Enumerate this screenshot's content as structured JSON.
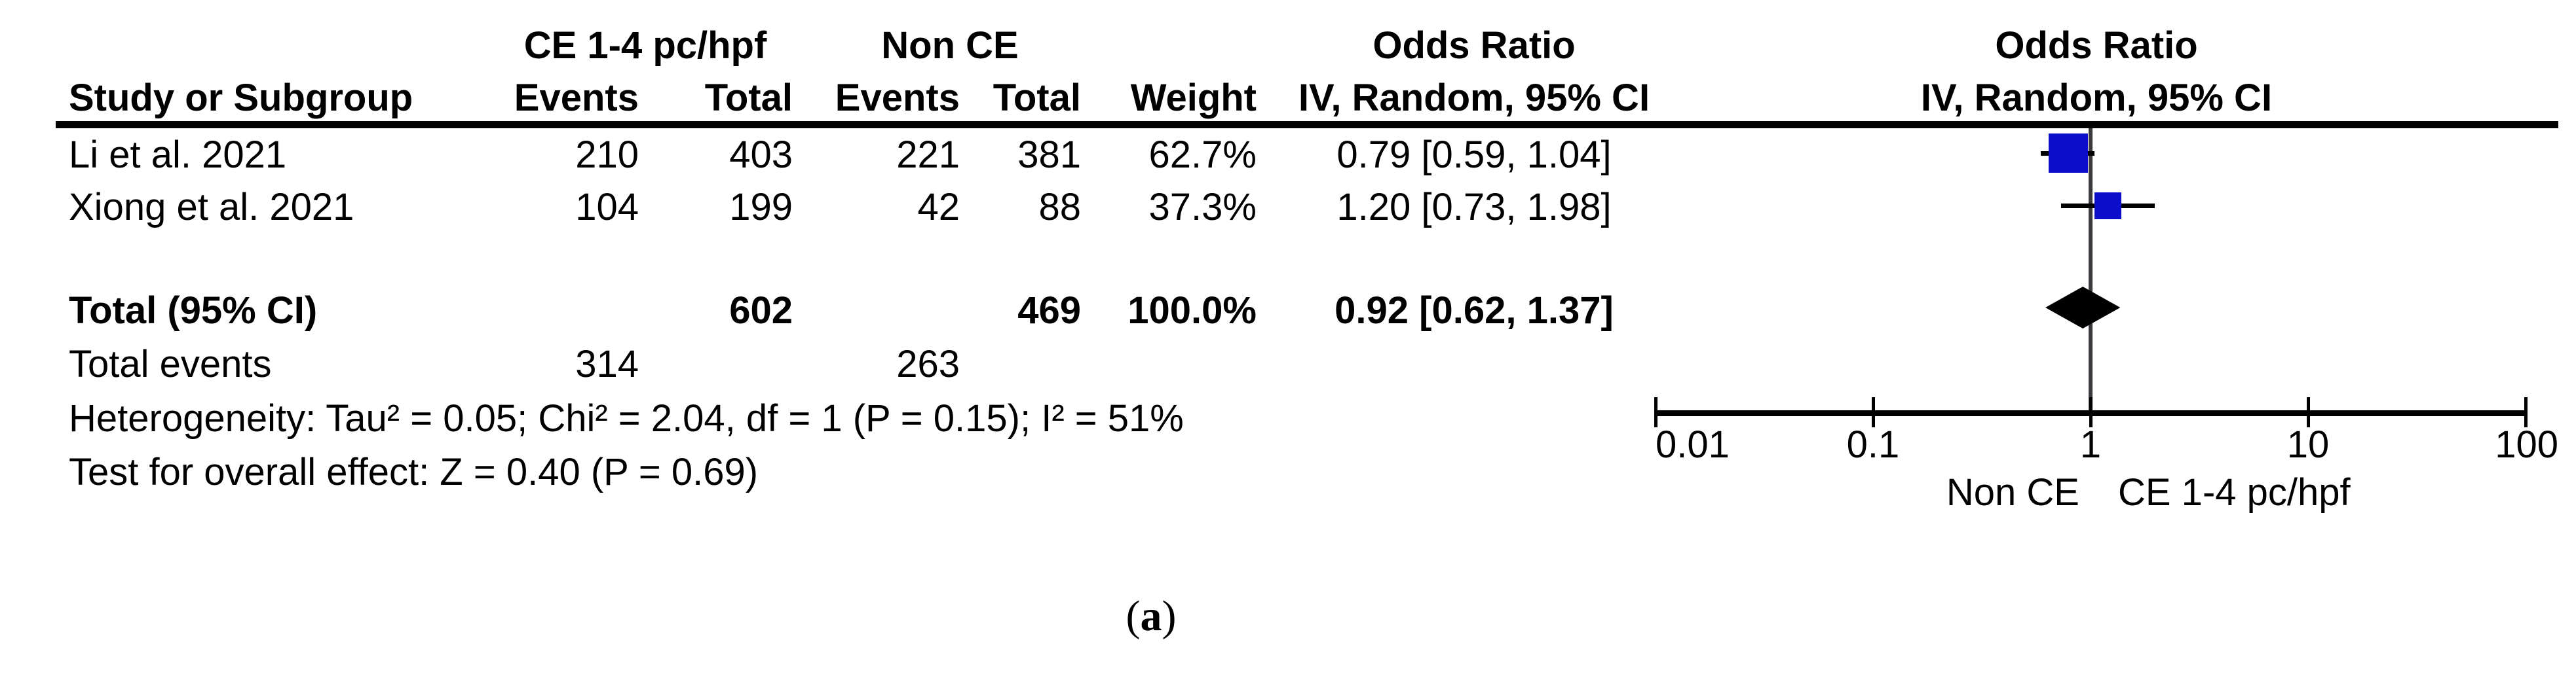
{
  "colors": {
    "marker_blue": "#0C0CCB",
    "diamond_black": "#000000",
    "line_black": "#000000",
    "center_line_gray": "#3a3a3e",
    "text_black": "#000000"
  },
  "table": {
    "header": {
      "group1": "CE 1-4 pc/hpf",
      "group2": "Non CE",
      "or_left": "Odds Ratio",
      "or_right": "Odds Ratio",
      "study": "Study or Subgroup",
      "events1": "Events",
      "total1": "Total",
      "events2": "Events",
      "total2": "Total",
      "weight": "Weight",
      "ci_left": "IV, Random, 95% CI",
      "ci_right": "IV, Random, 95% CI"
    },
    "rows": [
      {
        "study": "Li et al. 2021",
        "events1": "210",
        "total1": "403",
        "events2": "221",
        "total2": "381",
        "weight": "62.7%",
        "ci": "0.79 [0.59, 1.04]"
      },
      {
        "study": "Xiong et al. 2021",
        "events1": "104",
        "total1": "199",
        "events2": "42",
        "total2": "88",
        "weight": "37.3%",
        "ci": "1.20 [0.73, 1.98]"
      }
    ],
    "total_row": {
      "label": "Total (95% CI)",
      "total1": "602",
      "total2": "469",
      "weight": "100.0%",
      "ci": "0.92 [0.62, 1.37]"
    },
    "total_events_row": {
      "label": "Total events",
      "events1": "314",
      "events2": "263"
    },
    "heterogeneity_text": "Heterogeneity: Tau² = 0.05; Chi² = 2.04, df = 1 (P = 0.15); I² = 51%",
    "overall_effect_text": "Test for overall effect: Z = 0.40 (P = 0.69)"
  },
  "caption": {
    "open": "(",
    "letter": "a",
    "close": ")"
  },
  "chart_data": {
    "type": "forest",
    "effect_measure": "Odds Ratio",
    "method": "IV, Random, 95% CI",
    "log_scale": true,
    "axis": {
      "min": 0.01,
      "max": 100,
      "ticks": [
        0.01,
        0.1,
        1,
        10,
        100
      ],
      "tick_labels": [
        "0.01",
        "0.1",
        "1",
        "10",
        "100"
      ]
    },
    "footer_labels": {
      "left": "Non CE",
      "right": "CE 1-4 pc/hpf"
    },
    "studies": [
      {
        "name": "Li et al. 2021",
        "or": 0.79,
        "ci_low": 0.59,
        "ci_high": 1.04,
        "weight_pct": 62.7,
        "events_ce": 210,
        "total_ce": 403,
        "events_nonce": 221,
        "total_nonce": 381
      },
      {
        "name": "Xiong et al. 2021",
        "or": 1.2,
        "ci_low": 0.73,
        "ci_high": 1.98,
        "weight_pct": 37.3,
        "events_ce": 104,
        "total_ce": 199,
        "events_nonce": 42,
        "total_nonce": 88
      }
    ],
    "total": {
      "or": 0.92,
      "ci_low": 0.62,
      "ci_high": 1.37,
      "weight_pct": 100.0,
      "total_ce": 602,
      "total_nonce": 469,
      "events_ce": 314,
      "events_nonce": 263
    },
    "heterogeneity": {
      "tau2": 0.05,
      "chi2": 2.04,
      "df": 1,
      "p": 0.15,
      "i2_pct": 51
    },
    "overall_effect": {
      "z": 0.4,
      "p": 0.69
    }
  }
}
